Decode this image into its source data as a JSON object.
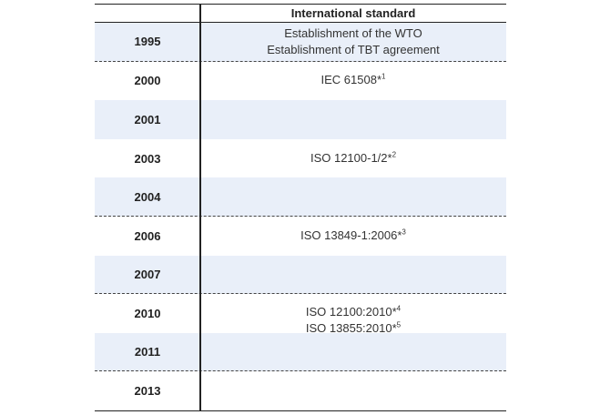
{
  "table": {
    "header": "International standard",
    "rows": [
      {
        "year": "1995",
        "entries": [
          {
            "text": "Establishment of the WTO"
          },
          {
            "text": "Establishment of TBT agreement"
          }
        ]
      },
      {
        "year": "2000",
        "entries": [
          {
            "text": "IEC 61508*",
            "sup": "1"
          }
        ]
      },
      {
        "year": "2001",
        "entries": []
      },
      {
        "year": "2003",
        "entries": [
          {
            "text": "ISO 12100-1/2*",
            "sup": "2"
          }
        ]
      },
      {
        "year": "2004",
        "entries": []
      },
      {
        "year": "2006",
        "entries": [
          {
            "text": "ISO 13849-1:2006*",
            "sup": "3"
          }
        ]
      },
      {
        "year": "2007",
        "entries": []
      },
      {
        "year": "2010",
        "entries": [
          {
            "text": "ISO 12100:2010*",
            "sup": "4"
          },
          {
            "text": "ISO 13855:2010*",
            "sup": "5"
          }
        ]
      },
      {
        "year": "2011",
        "entries": []
      },
      {
        "year": "2013",
        "entries": []
      }
    ]
  }
}
